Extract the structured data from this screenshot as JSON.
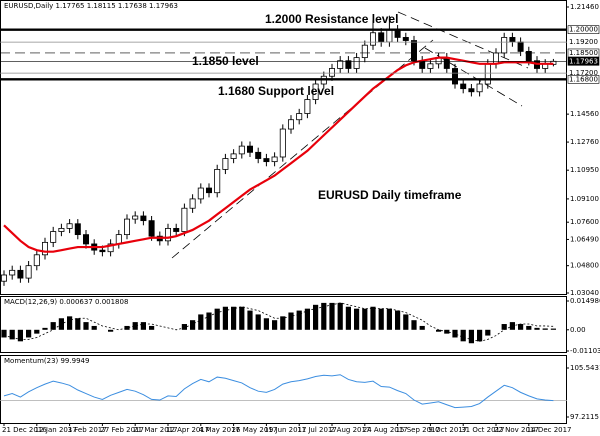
{
  "chart_data": [
    {
      "type": "candlestick",
      "title": "EURUSD,Daily 1.17765 1.18115 1.17638 1.17963",
      "annotations": [
        "1.2000 Resistance level",
        "1.1850 level",
        "1.1680 Support level",
        "EURUSD Daily timeframe"
      ],
      "categories": [
        "21 Dec 2016",
        null,
        null,
        null,
        "12 Jan 2017",
        null,
        null,
        null,
        "3 Feb 2017",
        null,
        null,
        null,
        "27 Feb 2017",
        null,
        null,
        null,
        "21 Mar 2017",
        null,
        null,
        null,
        "12 Apr 2017",
        null,
        null,
        null,
        "4 May 2017",
        null,
        null,
        null,
        "26 May 2017",
        null,
        null,
        null,
        "19 Jun 2017",
        null,
        null,
        null,
        "11 Jul 2017",
        null,
        null,
        null,
        "2 Aug 2017",
        null,
        null,
        null,
        "24 Aug 2017",
        null,
        null,
        null,
        "15 Sep 2017",
        null,
        null,
        null,
        "9 Oct 2017",
        null,
        null,
        null,
        "31 Oct 2017",
        null,
        null,
        null,
        "22 Nov 2017",
        null,
        null,
        null,
        "14 Dec 2017",
        null,
        null,
        null
      ],
      "open": [
        1.038,
        1.042,
        1.045,
        1.04,
        1.048,
        1.055,
        1.063,
        1.07,
        1.072,
        1.075,
        1.068,
        1.062,
        1.058,
        1.057,
        1.062,
        1.068,
        1.078,
        1.08,
        1.077,
        1.067,
        1.064,
        1.072,
        1.07,
        1.085,
        1.091,
        1.098,
        1.095,
        1.11,
        1.117,
        1.12,
        1.125,
        1.121,
        1.117,
        1.115,
        1.118,
        1.136,
        1.142,
        1.146,
        1.155,
        1.165,
        1.17,
        1.175,
        1.18,
        1.175,
        1.182,
        1.19,
        1.198,
        1.192,
        1.2,
        1.195,
        1.193,
        1.18,
        1.175,
        1.178,
        1.182,
        1.175,
        1.165,
        1.162,
        1.16,
        1.165,
        1.178,
        1.185,
        1.195,
        1.192,
        1.186,
        1.18,
        1.175,
        1.17765
      ],
      "high": [
        1.045,
        1.048,
        1.048,
        1.051,
        1.058,
        1.066,
        1.073,
        1.075,
        1.078,
        1.078,
        1.071,
        1.065,
        1.061,
        1.065,
        1.071,
        1.081,
        1.083,
        1.083,
        1.08,
        1.07,
        1.075,
        1.075,
        1.088,
        1.094,
        1.101,
        1.101,
        1.113,
        1.12,
        1.123,
        1.128,
        1.128,
        1.124,
        1.12,
        1.121,
        1.139,
        1.145,
        1.149,
        1.158,
        1.168,
        1.173,
        1.178,
        1.183,
        1.183,
        1.185,
        1.193,
        1.206,
        1.201,
        1.209,
        1.203,
        1.198,
        1.196,
        1.183,
        1.181,
        1.185,
        1.185,
        1.178,
        1.168,
        1.165,
        1.168,
        1.181,
        1.188,
        1.198,
        1.198,
        1.195,
        1.189,
        1.183,
        1.181,
        1.18115
      ],
      "low": [
        1.035,
        1.039,
        1.037,
        1.037,
        1.045,
        1.052,
        1.06,
        1.067,
        1.069,
        1.065,
        1.059,
        1.055,
        1.054,
        1.054,
        1.059,
        1.065,
        1.075,
        1.074,
        1.064,
        1.061,
        1.061,
        1.067,
        1.067,
        1.082,
        1.088,
        1.092,
        1.092,
        1.107,
        1.114,
        1.117,
        1.118,
        1.114,
        1.112,
        1.112,
        1.115,
        1.133,
        1.139,
        1.143,
        1.152,
        1.162,
        1.167,
        1.172,
        1.172,
        1.172,
        1.179,
        1.187,
        1.189,
        1.189,
        1.192,
        1.19,
        1.177,
        1.172,
        1.172,
        1.175,
        1.172,
        1.162,
        1.159,
        1.157,
        1.157,
        1.162,
        1.175,
        1.182,
        1.189,
        1.183,
        1.177,
        1.172,
        1.172,
        1.17638
      ],
      "close": [
        1.042,
        1.045,
        1.04,
        1.048,
        1.055,
        1.063,
        1.07,
        1.072,
        1.075,
        1.068,
        1.062,
        1.058,
        1.057,
        1.062,
        1.068,
        1.078,
        1.08,
        1.077,
        1.067,
        1.064,
        1.072,
        1.07,
        1.085,
        1.091,
        1.098,
        1.095,
        1.11,
        1.117,
        1.12,
        1.125,
        1.121,
        1.117,
        1.115,
        1.118,
        1.136,
        1.142,
        1.146,
        1.155,
        1.165,
        1.17,
        1.175,
        1.18,
        1.175,
        1.182,
        1.19,
        1.198,
        1.192,
        1.2,
        1.195,
        1.193,
        1.18,
        1.175,
        1.178,
        1.182,
        1.175,
        1.165,
        1.162,
        1.16,
        1.165,
        1.178,
        1.185,
        1.195,
        1.192,
        1.186,
        1.18,
        1.175,
        1.178,
        1.17963
      ],
      "ma": {
        "color": "#e8000b",
        "values": [
          1.074,
          1.069,
          1.064,
          1.06,
          1.058,
          1.057,
          1.057,
          1.058,
          1.059,
          1.06,
          1.06,
          1.06,
          1.06,
          1.061,
          1.062,
          1.063,
          1.064,
          1.065,
          1.066,
          1.066,
          1.066,
          1.067,
          1.069,
          1.071,
          1.074,
          1.077,
          1.081,
          1.085,
          1.089,
          1.093,
          1.097,
          1.1,
          1.103,
          1.106,
          1.11,
          1.114,
          1.118,
          1.122,
          1.127,
          1.132,
          1.137,
          1.142,
          1.147,
          1.152,
          1.157,
          1.162,
          1.166,
          1.17,
          1.174,
          1.177,
          1.179,
          1.18,
          1.181,
          1.182,
          1.182,
          1.181,
          1.18,
          1.179,
          1.178,
          1.178,
          1.178,
          1.179,
          1.179,
          1.179,
          1.179,
          1.178,
          1.178,
          1.178
        ]
      },
      "ylim": [
        1.0304,
        1.2146
      ],
      "yticks": [
        {
          "value": 1.2146,
          "label": "1.21460"
        },
        {
          "value": 1.1456,
          "label": "1.14560"
        },
        {
          "value": 1.1276,
          "label": "1.12760"
        },
        {
          "value": 1.1095,
          "label": "1.10950"
        },
        {
          "value": 1.091,
          "label": "1.09100"
        },
        {
          "value": 1.076,
          "label": "1.07600"
        },
        {
          "value": 1.0649,
          "label": "1.06490"
        },
        {
          "value": 1.048,
          "label": "1.04800"
        },
        {
          "value": 1.0304,
          "label": "1.03040"
        }
      ],
      "levels": [
        {
          "value": 1.2,
          "label": "1.20000",
          "style": "thick"
        },
        {
          "value": 1.192,
          "label": "1.19200",
          "style": "thin"
        },
        {
          "value": 1.185,
          "label": "1.18500",
          "style": "dashed"
        },
        {
          "value": 1.17963,
          "label": "1.17963",
          "style": "price"
        },
        {
          "value": 1.172,
          "label": "1.17200",
          "style": "thin"
        },
        {
          "value": 1.168,
          "label": "1.16800",
          "style": "thick"
        }
      ]
    },
    {
      "type": "bar",
      "title": "MACD(12,26,9) 0.000637 0.001808",
      "color": "#000000",
      "values": [
        -0.004,
        -0.005,
        -0.006,
        -0.004,
        -0.002,
        0.001,
        0.004,
        0.006,
        0.007,
        0.006,
        0.004,
        0.002,
        0.0,
        -0.001,
        0.0,
        0.002,
        0.004,
        0.004,
        0.002,
        0.0,
        0.0,
        0.0,
        0.003,
        0.005,
        0.008,
        0.009,
        0.011,
        0.012,
        0.012,
        0.012,
        0.01,
        0.008,
        0.006,
        0.005,
        0.007,
        0.009,
        0.01,
        0.011,
        0.013,
        0.014,
        0.014,
        0.014,
        0.012,
        0.011,
        0.011,
        0.012,
        0.011,
        0.011,
        0.01,
        0.008,
        0.005,
        0.002,
        0.0,
        -0.001,
        -0.002,
        -0.004,
        -0.006,
        -0.007,
        -0.006,
        -0.003,
        0.0,
        0.003,
        0.004,
        0.003,
        0.002,
        0.001,
        0.0007,
        0.000637
      ],
      "signal": {
        "color": "#000000",
        "values": [
          -0.003,
          -0.004,
          -0.005,
          -0.005,
          -0.004,
          -0.002,
          0.0,
          0.003,
          0.005,
          0.006,
          0.006,
          0.004,
          0.002,
          0.001,
          0.0,
          0.001,
          0.002,
          0.003,
          0.003,
          0.002,
          0.001,
          0.0,
          0.001,
          0.003,
          0.005,
          0.007,
          0.009,
          0.01,
          0.011,
          0.012,
          0.011,
          0.01,
          0.008,
          0.006,
          0.006,
          0.007,
          0.008,
          0.01,
          0.011,
          0.012,
          0.013,
          0.014,
          0.013,
          0.012,
          0.011,
          0.011,
          0.011,
          0.011,
          0.01,
          0.009,
          0.007,
          0.005,
          0.002,
          0.0,
          -0.001,
          -0.002,
          -0.004,
          -0.005,
          -0.006,
          -0.005,
          -0.003,
          0.0,
          0.002,
          0.003,
          0.003,
          0.002,
          0.002,
          0.001808
        ]
      },
      "ylim": [
        -0.011036,
        0.014986
      ],
      "yticks": [
        0.014986,
        {
          "value": 0,
          "label": "0.00"
        },
        -0.011036
      ]
    },
    {
      "type": "line",
      "title": "Momentum(23) 99.9949",
      "color": "#3c8ee0",
      "values": [
        100.8,
        101.2,
        100.6,
        101.5,
        102.2,
        102.8,
        103.3,
        103.0,
        102.6,
        101.8,
        101.2,
        100.6,
        100.2,
        100.9,
        101.4,
        101.9,
        101.6,
        101.0,
        100.2,
        100.1,
        100.8,
        100.7,
        102.0,
        102.9,
        103.6,
        103.2,
        104.0,
        103.8,
        103.4,
        103.0,
        102.2,
        101.6,
        101.4,
        101.9,
        102.8,
        103.2,
        103.4,
        103.7,
        104.1,
        104.3,
        104.2,
        104.4,
        103.6,
        103.2,
        103.1,
        103.3,
        102.4,
        102.3,
        101.7,
        101.2,
        100.1,
        99.4,
        99.6,
        99.8,
        99.3,
        98.8,
        98.9,
        99.0,
        99.5,
        100.6,
        101.6,
        102.6,
        102.2,
        101.4,
        100.8,
        100.3,
        100.1,
        99.9949
      ],
      "level": 100,
      "ylim": [
        97.2115,
        105.5431
      ],
      "yticks": [
        105.5431,
        97.2115
      ]
    }
  ]
}
